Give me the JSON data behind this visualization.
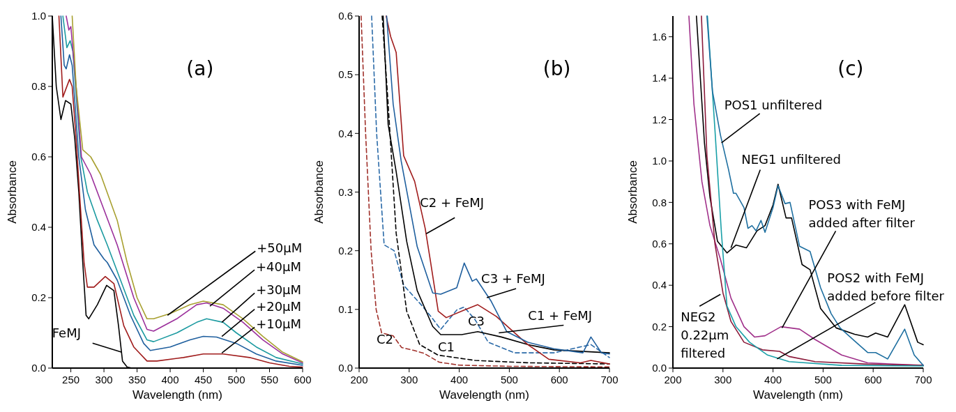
{
  "chart_data": [
    {
      "type": "line",
      "title": "(a)",
      "xlabel": "Wavelength (nm)",
      "ylabel": "Absorbance",
      "xlim": [
        222,
        600
      ],
      "xticks": [
        250,
        300,
        350,
        400,
        450,
        500,
        550,
        600
      ],
      "ylim": [
        0,
        1
      ],
      "yticks": [
        {
          "value": 0,
          "label": "0.0"
        },
        {
          "value": 0.2,
          "label": "0.2"
        },
        {
          "value": 0.4,
          "label": "0.4"
        },
        {
          "value": 0.6,
          "label": "0.6"
        },
        {
          "value": 0.8,
          "label": "0.8"
        },
        {
          "value": 1,
          "label": "1.0"
        }
      ],
      "series": [
        {
          "color": "#000000",
          "x": [
            222,
            228,
            235,
            242,
            250,
            256,
            262,
            268,
            273,
            277,
            290,
            304,
            315,
            322,
            328,
            335,
            342,
            345
          ],
          "values": [
            1,
            0.8,
            0.706,
            0.76,
            0.75,
            0.65,
            0.5,
            0.3,
            0.15,
            0.14,
            0.18,
            0.235,
            0.22,
            0.12,
            0.02,
            0.003,
            0,
            0
          ]
        },
        {
          "color": "#a01c1c",
          "x": [
            232,
            238,
            248,
            252,
            258,
            263,
            270,
            275,
            285,
            302,
            315,
            330,
            345,
            365,
            380,
            420,
            450,
            480,
            520,
            550,
            580,
            600
          ],
          "values": [
            1,
            0.77,
            0.82,
            0.8,
            0.65,
            0.5,
            0.3,
            0.23,
            0.23,
            0.26,
            0.24,
            0.12,
            0.06,
            0.02,
            0.02,
            0.03,
            0.04,
            0.04,
            0.03,
            0.015,
            0.005,
            0.003
          ]
        },
        {
          "color": "#1f5f9e",
          "x": [
            235,
            240,
            243,
            248,
            252,
            262,
            272,
            285,
            300,
            305,
            320,
            340,
            360,
            370,
            400,
            430,
            450,
            470,
            500,
            530,
            560,
            600
          ],
          "values": [
            1,
            0.86,
            0.85,
            0.89,
            0.86,
            0.6,
            0.45,
            0.35,
            0.31,
            0.3,
            0.25,
            0.15,
            0.07,
            0.05,
            0.06,
            0.08,
            0.09,
            0.088,
            0.07,
            0.04,
            0.02,
            0.008
          ]
        },
        {
          "color": "#1b9aa0",
          "x": [
            238,
            244,
            249,
            253,
            265,
            275,
            290,
            305,
            325,
            345,
            365,
            375,
            410,
            440,
            455,
            480,
            500,
            530,
            560,
            600
          ],
          "values": [
            1,
            0.91,
            0.93,
            0.9,
            0.6,
            0.5,
            0.42,
            0.35,
            0.25,
            0.15,
            0.08,
            0.075,
            0.1,
            0.13,
            0.14,
            0.13,
            0.1,
            0.06,
            0.03,
            0.012
          ]
        },
        {
          "color": "#9b2f9b",
          "x": [
            243,
            247,
            250,
            258,
            266,
            280,
            300,
            320,
            345,
            365,
            375,
            410,
            440,
            455,
            480,
            510,
            540,
            570,
            600
          ],
          "values": [
            1,
            0.96,
            0.97,
            0.8,
            0.6,
            0.55,
            0.45,
            0.35,
            0.2,
            0.11,
            0.105,
            0.14,
            0.18,
            0.185,
            0.17,
            0.13,
            0.08,
            0.04,
            0.015
          ]
        },
        {
          "color": "#a8a030",
          "x": [
            252,
            258,
            268,
            280,
            295,
            320,
            335,
            350,
            365,
            375,
            400,
            430,
            450,
            480,
            510,
            540,
            570,
            600
          ],
          "values": [
            1,
            0.8,
            0.62,
            0.6,
            0.55,
            0.42,
            0.3,
            0.2,
            0.14,
            0.14,
            0.155,
            0.18,
            0.19,
            0.18,
            0.14,
            0.09,
            0.045,
            0.018
          ]
        }
      ],
      "annotations": [
        {
          "text": "+50µM",
          "x": 396,
          "y": 0.15
        },
        {
          "text": "+40µM",
          "x": 460,
          "y": 0.176
        },
        {
          "text": "+30µM",
          "x": 478,
          "y": 0.13
        },
        {
          "text": "+20µM",
          "x": 478,
          "y": 0.09
        },
        {
          "text": "+10µM",
          "x": 478,
          "y": 0.043
        },
        {
          "text": "FeMJ",
          "x": 327,
          "y": 0.045
        }
      ]
    },
    {
      "type": "line",
      "title": "(b)",
      "xlabel": "Wavelength (nm)",
      "ylabel": "Absorbance",
      "xlim": [
        200,
        700
      ],
      "xticks": [
        200,
        300,
        400,
        500,
        600,
        700
      ],
      "ylim": [
        0,
        0.6
      ],
      "yticks": [
        {
          "value": 0,
          "label": "0.0"
        },
        0.1,
        0.2,
        0.3,
        0.4,
        0.5,
        0.6
      ],
      "series": [
        {
          "color": "#a0302a",
          "line_style": "dashed",
          "x": [
            204,
            213,
            224,
            234,
            245,
            268,
            285,
            310,
            330,
            360,
            400,
            500,
            700
          ],
          "values": [
            0.6,
            0.4,
            0.2,
            0.1,
            0.06,
            0.055,
            0.035,
            0.03,
            0.025,
            0.01,
            0.005,
            0.003,
            0.002
          ]
        },
        {
          "color": "#2a6aa8",
          "line_style": "dashed",
          "x": [
            225,
            235,
            250,
            270,
            289,
            326,
            347,
            363,
            395,
            410,
            432,
            458,
            510,
            589,
            663,
            700
          ],
          "values": [
            0.6,
            0.4,
            0.21,
            0.2,
            0.141,
            0.106,
            0.084,
            0.066,
            0.099,
            0.104,
            0.082,
            0.044,
            0.026,
            0.026,
            0.04,
            0.018
          ]
        },
        {
          "color": "#000000",
          "line_style": "dashed",
          "x": [
            246,
            258,
            274,
            295,
            321,
            358,
            432,
            537,
            700
          ],
          "values": [
            0.6,
            0.45,
            0.23,
            0.097,
            0.04,
            0.022,
            0.013,
            0.009,
            0.007
          ]
        },
        {
          "color": "#000000",
          "x": [
            248,
            258,
            274,
            295,
            316,
            347,
            363,
            405,
            437,
            484,
            537,
            589,
            700
          ],
          "values": [
            0.6,
            0.415,
            0.335,
            0.216,
            0.132,
            0.071,
            0.057,
            0.057,
            0.062,
            0.053,
            0.04,
            0.031,
            0.026
          ]
        },
        {
          "color": "#a01c1c",
          "x": [
            254,
            263,
            274,
            289,
            311,
            332,
            342,
            358,
            374,
            410,
            437,
            474,
            537,
            579,
            642,
            663,
            700
          ],
          "values": [
            0.6,
            0.565,
            0.538,
            0.362,
            0.318,
            0.238,
            0.185,
            0.097,
            0.086,
            0.099,
            0.108,
            0.088,
            0.04,
            0.015,
            0.009,
            0.013,
            0.007
          ]
        },
        {
          "color": "#1f5f9e",
          "x": [
            255,
            268,
            284,
            316,
            347,
            363,
            395,
            410,
            426,
            434,
            463,
            495,
            537,
            589,
            647,
            663,
            684,
            700
          ],
          "values": [
            0.6,
            0.45,
            0.353,
            0.207,
            0.128,
            0.126,
            0.137,
            0.179,
            0.148,
            0.152,
            0.115,
            0.062,
            0.044,
            0.033,
            0.026,
            0.053,
            0.026,
            0.024
          ]
        }
      ],
      "annotations": [
        {
          "text": "C2 + FeMJ",
          "x": 334,
          "y": 0.229
        },
        {
          "text": "C3 + FeMJ",
          "x": 455,
          "y": 0.12
        },
        {
          "text": "C1 + FeMJ",
          "x": 479,
          "y": 0.06
        },
        {
          "text": "C3",
          "x": 434,
          "y": 0.079
        },
        "C2",
        "C1"
      ]
    },
    {
      "type": "line",
      "title": "(c)",
      "xlabel": "Wavelength (nm)",
      "ylabel": "Absorbance",
      "xlim": [
        200,
        700
      ],
      "xticks": [
        200,
        300,
        400,
        500,
        600,
        700
      ],
      "ylim": [
        0,
        1.7
      ],
      "yticks": [
        {
          "value": 0,
          "label": "0.0"
        },
        0.2,
        0.4,
        0.6,
        0.8,
        {
          "value": 1,
          "label": "1.0"
        },
        1.2,
        1.4,
        1.6
      ],
      "series": [
        {
          "color": "#a0308a",
          "x": [
            232,
            242,
            258,
            274,
            295,
            316,
            342,
            363,
            384,
            416,
            453,
            484,
            537,
            589,
            700
          ],
          "values": [
            1.7,
            1.275,
            0.9,
            0.688,
            0.525,
            0.338,
            0.2,
            0.15,
            0.156,
            0.2,
            0.188,
            0.138,
            0.063,
            0.025,
            0.013
          ]
        },
        {
          "color": "#000000",
          "x": [
            247,
            263,
            274,
            289,
            308,
            326,
            347,
            368,
            384,
            400,
            410,
            426,
            437,
            458,
            474,
            495,
            526,
            563,
            589,
            605,
            629,
            663,
            689,
            700
          ],
          "values": [
            1.7,
            1.088,
            0.825,
            0.613,
            0.556,
            0.594,
            0.581,
            0.663,
            0.688,
            0.788,
            0.888,
            0.725,
            0.725,
            0.5,
            0.475,
            0.288,
            0.194,
            0.163,
            0.15,
            0.169,
            0.15,
            0.306,
            0.125,
            0.113
          ]
        },
        {
          "color": "#8b1a3a",
          "x": [
            257,
            268,
            284,
            300,
            316,
            342,
            379,
            413,
            432,
            484,
            589,
            700
          ],
          "values": [
            1.7,
            1.025,
            0.6,
            0.363,
            0.225,
            0.125,
            0.088,
            0.081,
            0.056,
            0.031,
            0.019,
            0.013
          ]
        },
        {
          "color": "#1aa0a8",
          "x": [
            269,
            284,
            297,
            308,
            326,
            353,
            389,
            432,
            537,
            700
          ],
          "values": [
            1.7,
            1.15,
            0.65,
            0.3,
            0.2,
            0.125,
            0.063,
            0.031,
            0.013,
            0.01
          ]
        },
        {
          "color": "#1e6fa0",
          "x": [
            268,
            279,
            295,
            311,
            321,
            326,
            342,
            350,
            358,
            366,
            376,
            384,
            400,
            410,
            424,
            434,
            453,
            474,
            495,
            516,
            534,
            563,
            589,
            605,
            629,
            663,
            682,
            700
          ],
          "values": [
            1.7,
            1.338,
            1.125,
            0.96,
            0.844,
            0.844,
            0.775,
            0.675,
            0.688,
            0.663,
            0.713,
            0.656,
            0.775,
            0.881,
            0.794,
            0.8,
            0.588,
            0.563,
            0.388,
            0.263,
            0.194,
            0.131,
            0.075,
            0.075,
            0.044,
            0.188,
            0.063,
            0.013
          ]
        }
      ],
      "annotations": [
        {
          "text": "POS1 unfiltered",
          "x": 297,
          "y": 1.088
        },
        {
          "text": "NEG1 unfiltered",
          "x": 316,
          "y": 0.581
        },
        {
          "text": "POS3 with FeMJ\nadded after filter",
          "x": 418,
          "y": 0.194
        },
        {
          "text": "POS2 with FeMJ\nadded before filter",
          "x": 408,
          "y": 0.044
        },
        {
          "text": "NEG2\n0.22µm\nfiltered",
          "x": 295,
          "y": 0.356
        }
      ]
    }
  ]
}
